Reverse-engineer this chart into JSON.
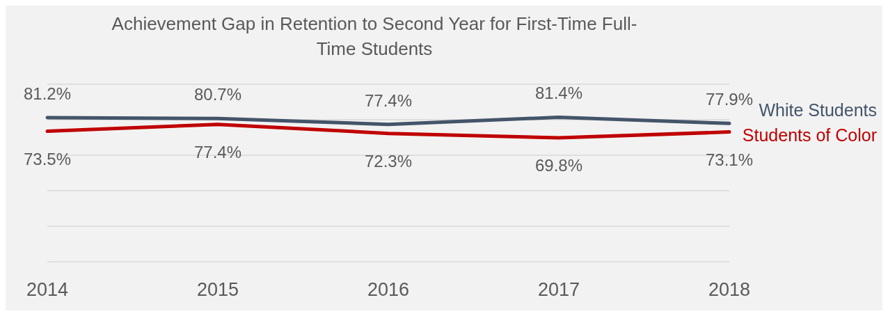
{
  "chart_data": {
    "type": "line",
    "title": "Achievement Gap in Retention to Second Year for First-Time Full-Time Students",
    "categories": [
      "2014",
      "2015",
      "2016",
      "2017",
      "2018"
    ],
    "series": [
      {
        "name": "White Students",
        "color": "#44546a",
        "values": [
          81.2,
          80.7,
          77.4,
          81.4,
          77.9
        ],
        "value_labels": [
          "81.2%",
          "80.7%",
          "77.4%",
          "81.4%",
          "77.9%"
        ]
      },
      {
        "name": "Students of Color",
        "color": "#c00000",
        "values": [
          73.5,
          77.4,
          72.3,
          69.8,
          73.1
        ],
        "value_labels": [
          "73.5%",
          "77.4%",
          "72.3%",
          "69.8%",
          "73.1%"
        ]
      }
    ],
    "ylim": [
      0,
      100
    ],
    "tick_labels": "x",
    "grid": "y",
    "legend": "right",
    "marker": "none",
    "line_style": "solid"
  }
}
